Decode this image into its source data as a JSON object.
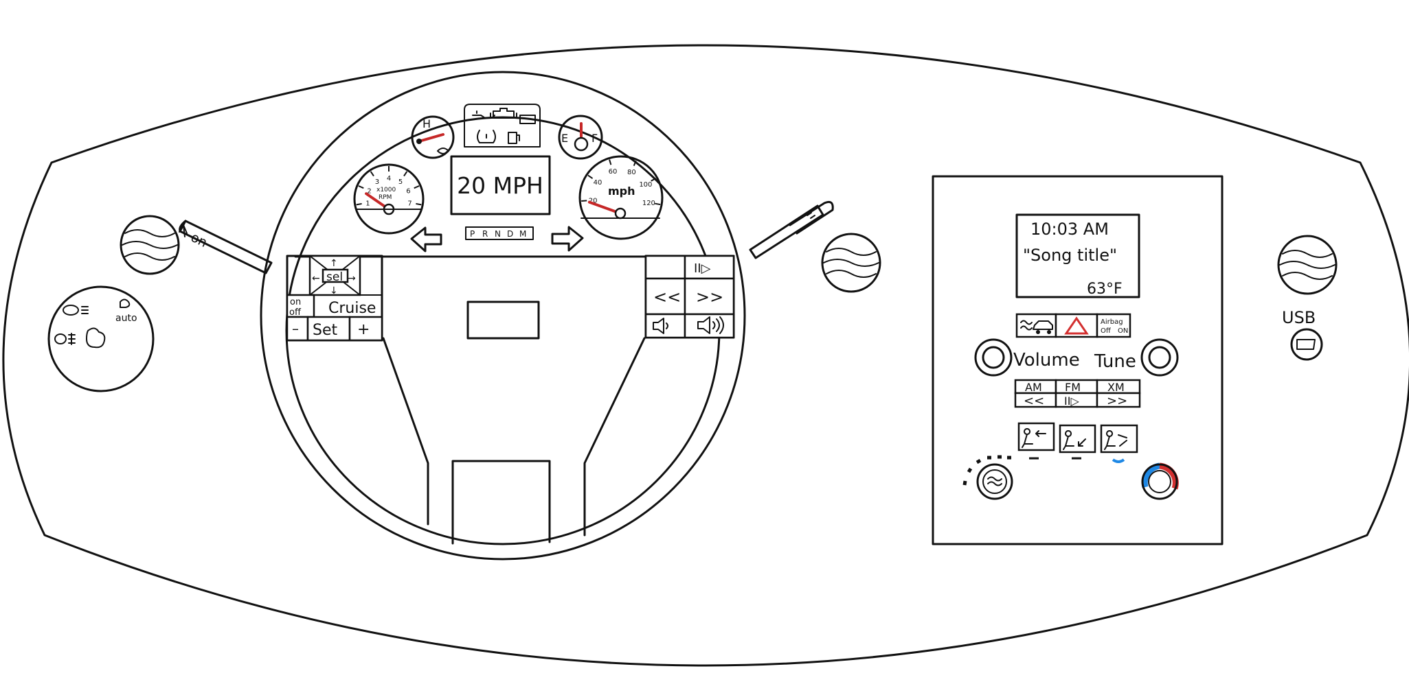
{
  "speed_display": {
    "label": "20 MPH"
  },
  "gear_selector": {
    "p": "P",
    "r": "R",
    "n": "N",
    "d": "D",
    "m": "M",
    "selected": "D"
  },
  "tachometer": {
    "unit_top": "x1000",
    "unit_bottom": "RPM",
    "ticks": [
      "1",
      "2",
      "3",
      "4",
      "5",
      "6",
      "7"
    ],
    "reading_x1000": 1
  },
  "speedometer": {
    "unit": "mph",
    "ticks": [
      "20",
      "40",
      "60",
      "80",
      "100",
      "120"
    ],
    "reading_mph": 20
  },
  "temp_gauge": {
    "label": "H"
  },
  "fuel_gauge": {
    "empty": "E",
    "full": "F",
    "level": 0.5
  },
  "lights_knob": {
    "auto": "auto"
  },
  "turn_signal_stalk": {
    "label": "on"
  },
  "steering_left": {
    "select": "sel",
    "cruise_onoff_top": "on",
    "cruise_onoff_bottom": "off",
    "cruise": "Cruise",
    "minus": "–",
    "set": "Set",
    "plus": "+"
  },
  "steering_right": {
    "play_pause": "II▷",
    "prev": "<<",
    "next": ">>"
  },
  "radio": {
    "time": "10:03 AM",
    "song": "\"Song title\"",
    "temperature": "63°F",
    "airbag_line1": "Airbag",
    "airbag_off": "Off",
    "airbag_on": "ON",
    "volume": "Volume",
    "tune": "Tune",
    "am": "AM",
    "fm": "FM",
    "xm": "XM",
    "prev": "<<",
    "play_pause": "II▷",
    "next": ">>"
  },
  "usb": {
    "label": "USB"
  },
  "colors": {
    "needle": "#c62828",
    "hazard": "#d32f2f",
    "airbag_on": "#1e88e5",
    "heat": "#d32f2f",
    "cool": "#1e88e5"
  }
}
